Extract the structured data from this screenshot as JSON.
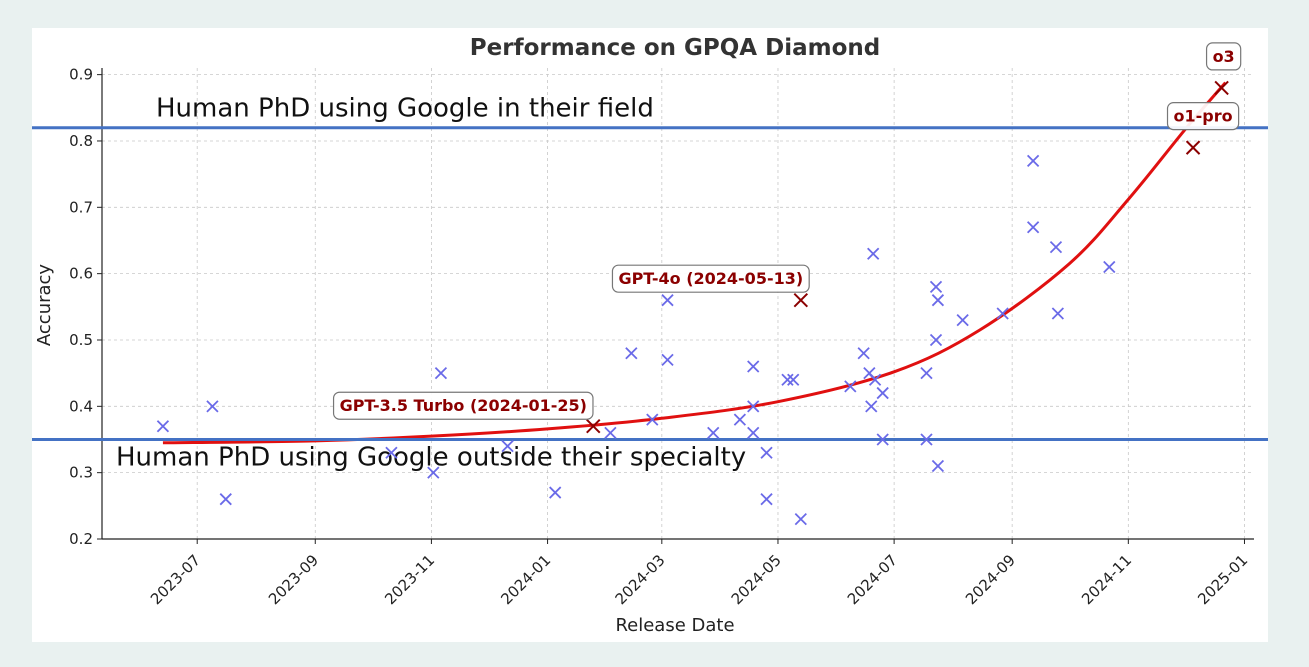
{
  "chart_data": {
    "type": "scatter",
    "title": "Performance on GPQA Diamond",
    "xlabel": "Release Date",
    "ylabel": "Accuracy",
    "ylim": [
      0.2,
      0.91
    ],
    "xlim": [
      "2023-05-12",
      "2025-01-06"
    ],
    "x_ticks": [
      "2023-07",
      "2023-09",
      "2023-11",
      "2024-01",
      "2024-03",
      "2024-05",
      "2024-07",
      "2024-09",
      "2024-11",
      "2025-01"
    ],
    "y_ticks": [
      0.2,
      0.3,
      0.4,
      0.5,
      0.6,
      0.7,
      0.8,
      0.9
    ],
    "grid": true,
    "colors": {
      "points": "#6a6ae8",
      "highlight": "#8b0000",
      "trend": "#e01010",
      "reference": "#4472c4"
    },
    "reference_lines": [
      {
        "y": 0.82,
        "label": "Human PhD using Google in their field"
      },
      {
        "y": 0.35,
        "label": "Human PhD using Google outside their specialty"
      }
    ],
    "points": [
      {
        "date": "2023-06-13",
        "y": 0.37
      },
      {
        "date": "2023-07-09",
        "y": 0.4
      },
      {
        "date": "2023-07-16",
        "y": 0.26
      },
      {
        "date": "2023-10-11",
        "y": 0.33
      },
      {
        "date": "2023-11-02",
        "y": 0.3
      },
      {
        "date": "2023-11-06",
        "y": 0.45
      },
      {
        "date": "2023-12-11",
        "y": 0.34
      },
      {
        "date": "2024-01-05",
        "y": 0.27
      },
      {
        "date": "2024-02-03",
        "y": 0.36
      },
      {
        "date": "2024-02-14",
        "y": 0.48
      },
      {
        "date": "2024-02-25",
        "y": 0.38
      },
      {
        "date": "2024-03-04",
        "y": 0.56
      },
      {
        "date": "2024-03-04",
        "y": 0.47
      },
      {
        "date": "2024-03-28",
        "y": 0.36
      },
      {
        "date": "2024-04-11",
        "y": 0.38
      },
      {
        "date": "2024-04-18",
        "y": 0.46
      },
      {
        "date": "2024-04-18",
        "y": 0.4
      },
      {
        "date": "2024-04-18",
        "y": 0.36
      },
      {
        "date": "2024-04-25",
        "y": 0.33
      },
      {
        "date": "2024-04-25",
        "y": 0.26
      },
      {
        "date": "2024-05-06",
        "y": 0.44
      },
      {
        "date": "2024-05-09",
        "y": 0.44
      },
      {
        "date": "2024-05-13",
        "y": 0.23
      },
      {
        "date": "2024-06-08",
        "y": 0.43
      },
      {
        "date": "2024-06-15",
        "y": 0.48
      },
      {
        "date": "2024-06-18",
        "y": 0.45
      },
      {
        "date": "2024-06-19",
        "y": 0.4
      },
      {
        "date": "2024-06-20",
        "y": 0.63
      },
      {
        "date": "2024-06-21",
        "y": 0.44
      },
      {
        "date": "2024-06-25",
        "y": 0.42
      },
      {
        "date": "2024-06-25",
        "y": 0.35
      },
      {
        "date": "2024-07-18",
        "y": 0.45
      },
      {
        "date": "2024-07-18",
        "y": 0.35
      },
      {
        "date": "2024-07-23",
        "y": 0.58
      },
      {
        "date": "2024-07-23",
        "y": 0.5
      },
      {
        "date": "2024-07-24",
        "y": 0.56
      },
      {
        "date": "2024-07-24",
        "y": 0.31
      },
      {
        "date": "2024-08-06",
        "y": 0.53
      },
      {
        "date": "2024-08-27",
        "y": 0.54
      },
      {
        "date": "2024-09-12",
        "y": 0.77
      },
      {
        "date": "2024-09-12",
        "y": 0.67
      },
      {
        "date": "2024-09-24",
        "y": 0.64
      },
      {
        "date": "2024-09-25",
        "y": 0.54
      },
      {
        "date": "2024-10-22",
        "y": 0.61
      }
    ],
    "highlighted": [
      {
        "date": "2024-01-25",
        "y": 0.37,
        "label": "GPT-3.5 Turbo (2024-01-25)"
      },
      {
        "date": "2024-05-13",
        "y": 0.56,
        "label": "GPT-4o (2024-05-13)"
      },
      {
        "date": "2024-12-05",
        "y": 0.79,
        "label": "o1-pro"
      },
      {
        "date": "2024-12-20",
        "y": 0.88,
        "label": "o3"
      }
    ],
    "trend": {
      "type": "exponential",
      "x_start": "2023-06-13",
      "x_end": "2024-12-22",
      "points": [
        {
          "date": "2023-06-13",
          "y": 0.345
        },
        {
          "date": "2023-09-01",
          "y": 0.348
        },
        {
          "date": "2023-11-01",
          "y": 0.355
        },
        {
          "date": "2024-01-01",
          "y": 0.366
        },
        {
          "date": "2024-03-01",
          "y": 0.382
        },
        {
          "date": "2024-05-01",
          "y": 0.407
        },
        {
          "date": "2024-07-01",
          "y": 0.452
        },
        {
          "date": "2024-08-15",
          "y": 0.515
        },
        {
          "date": "2024-10-01",
          "y": 0.615
        },
        {
          "date": "2024-11-01",
          "y": 0.712
        },
        {
          "date": "2024-12-01",
          "y": 0.818
        },
        {
          "date": "2024-12-22",
          "y": 0.888
        }
      ]
    }
  }
}
